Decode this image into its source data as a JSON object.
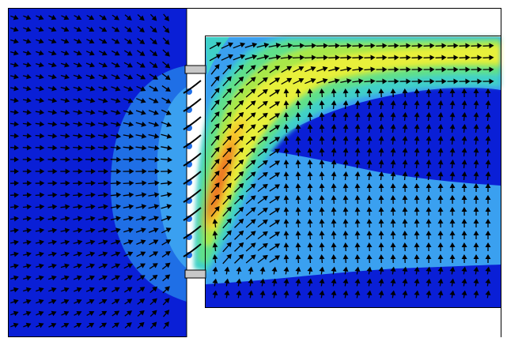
{
  "figure": {
    "kind": "cfd-velocity-vector-field",
    "colormap": [
      "#0a1fd6",
      "#1f6fe6",
      "#3aa0f0",
      "#3fd0c8",
      "#5ee08a",
      "#a8e84a",
      "#e8f03a",
      "#ffb020",
      "#e83a1a"
    ],
    "background": "#ffffff",
    "outline_color": "#000000",
    "arrow_color": "#000000",
    "has_text": false
  }
}
